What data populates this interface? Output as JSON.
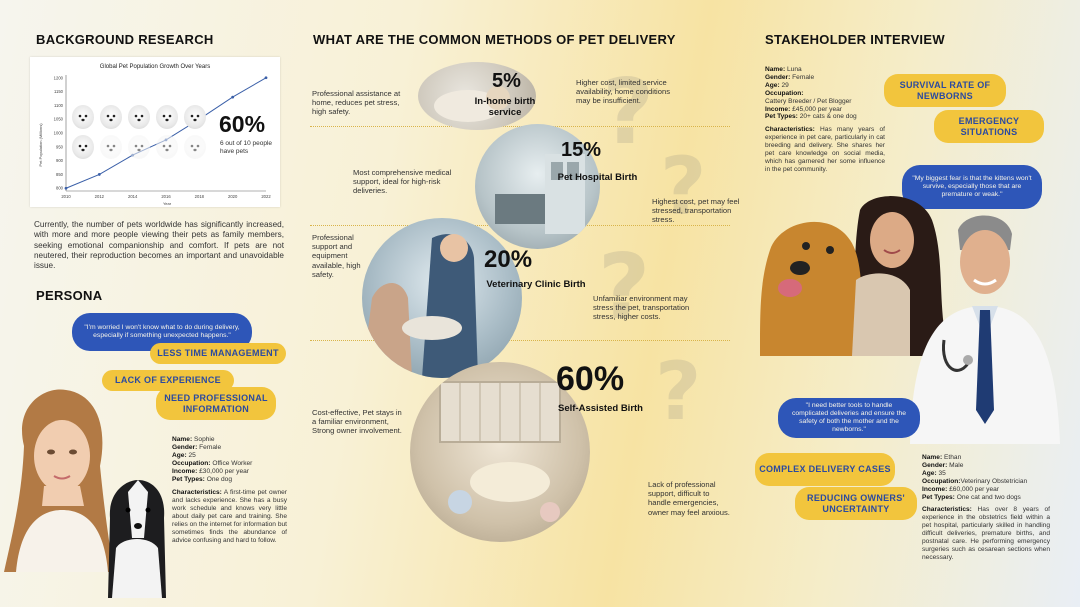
{
  "sections": {
    "background": "BACKGROUND RESEARCH",
    "methods": "WHAT ARE THE COMMON METHODS OF PET DELIVERY",
    "stakeholder": "STAKEHOLDER INTERVIEW",
    "persona": "PERSONA"
  },
  "chart_data": {
    "type": "line",
    "title": "Global Pet Population Growth Over Years",
    "xlabel": "Year",
    "ylabel": "Pet Population (Millions)",
    "x": [
      2010,
      2012,
      2014,
      2016,
      2018,
      2020,
      2022
    ],
    "values": [
      800,
      850,
      920,
      975,
      1050,
      1130,
      1200
    ],
    "yticks": [
      800,
      850,
      900,
      950,
      1000,
      1050,
      1100,
      1150,
      1200
    ],
    "ylim": [
      790,
      1210
    ],
    "grid": false
  },
  "stat": {
    "value": "60%",
    "caption": "6 out of 10 people have pets"
  },
  "background_text": "Currently, the number of pets worldwide has significantly increased, with more and more people viewing their pets as family members, seeking emotional companionship and comfort. If pets are not neutered, their reproduction becomes an important and unavoidable issue.",
  "methods": [
    {
      "pct": "5%",
      "label": "In-home birth service",
      "pro": "Professional assistance at home, reduces pet stress, high safety.",
      "con": "Higher cost, limited service availability, home conditions may be insufficient."
    },
    {
      "pct": "15%",
      "label": "Pet Hospital Birth",
      "pro": "Most comprehensive medical support, ideal for high-risk deliveries.",
      "con": "Highest cost, pet may feel stressed, transportation stress."
    },
    {
      "pct": "20%",
      "label": "Veterinary Clinic Birth",
      "pro": "Professional support and equipment available, high safety.",
      "con": "Unfamiliar environment may stress the pet, transportation stress, higher costs."
    },
    {
      "pct": "60%",
      "label": "Self-Assisted Birth",
      "pro": "Cost-effective, Pet stays in a familiar environment, Strong owner involvement.",
      "con": "Lack of professional support, difficult to handle emergencies, owner may feel anxious."
    }
  ],
  "persona": {
    "quote": "\"I'm worried I won't know what to do during delivery, especially if something unexpected happens.\"",
    "tags": [
      "LESS TIME MANAGEMENT",
      "LACK OF EXPERIENCE",
      "NEED PROFESSIONAL INFORMATION"
    ],
    "name": "Sophie",
    "gender": "Female",
    "age": "25",
    "occupation": "Office Worker",
    "income": "£30,000 per year",
    "pets": "One dog",
    "characteristics": "A first-time pet owner and lacks experience. She has a busy work schedule and knows very little about daily pet care and training. She relies on the internet for information but sometimes finds the abundance of advice confusing and hard to follow."
  },
  "stakeholder1": {
    "name": "Luna",
    "gender": "Female",
    "age": "29",
    "occupation": "Cattery Breeder / Pet Blogger",
    "income": "£45,000 per year",
    "pets": "20+ cats & one dog",
    "characteristics": "Has many years of experience in pet care, particularly in cat breeding and delivery. She shares her pet care knowledge on social media, which has garnered her some influence in the pet community.",
    "tags": [
      "SURVIVAL RATE OF NEWBORNS",
      "EMERGENCY SITUATIONS"
    ],
    "quote": "\"My biggest fear is that the kittens won't survive, especially those that are premature or weak.\""
  },
  "stakeholder2": {
    "name": "Ethan",
    "gender": "Male",
    "age": "35",
    "occupation": "Veterinary Obstetrician",
    "income": "£60,000 per year",
    "pets": "One cat and two dogs",
    "characteristics": "Has over 8 years of experience in the obstetrics field within a pet hospital, particularly skilled in handling difficult deliveries, premature births, and postnatal care. He performing emergency surgeries such as cesarean sections when necessary.",
    "tags": [
      "COMPLEX DELIVERY CASES",
      "REDUCING OWNERS' UNCERTAINTY"
    ],
    "quote": "\"I need better tools to handle complicated deliveries and ensure the safety of both the mother and the newborns.\""
  },
  "labels": {
    "name": "Name:",
    "gender": "Gender:",
    "age": "Age:",
    "occupation": "Occupation:",
    "income": "Income:",
    "pets": "Pet Types:",
    "characteristics": "Characteristics:"
  },
  "colors": {
    "accent_yellow": "#f2c53d",
    "accent_blue": "#2e56b8"
  }
}
